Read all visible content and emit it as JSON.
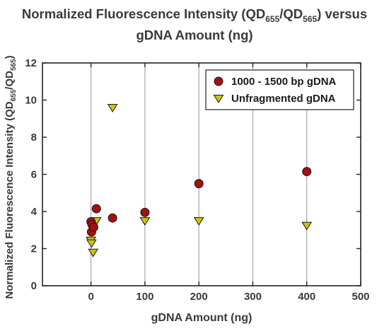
{
  "chart_data": {
    "type": "scatter",
    "title_parts": [
      {
        "t": "Normalized Fluorescence Intensity (QD",
        "sub": false
      },
      {
        "t": "655",
        "sub": true
      },
      {
        "t": "/QD",
        "sub": false
      },
      {
        "t": "565",
        "sub": true
      },
      {
        "t": ") versus",
        "sub": false
      },
      {
        "t": "gDNA Amount (ng)",
        "sub": false,
        "br": true
      }
    ],
    "xlabel": "gDNA Amount (ng)",
    "ylabel_parts": [
      {
        "t": "Normalized Fluorescence Intensity (QD",
        "sub": false
      },
      {
        "t": "655",
        "sub": true
      },
      {
        "t": "/QD",
        "sub": false
      },
      {
        "t": "565",
        "sub": true
      },
      {
        "t": ")",
        "sub": false
      }
    ],
    "xlim": [
      -90,
      500
    ],
    "ylim": [
      0,
      12
    ],
    "xticks": [
      0,
      100,
      200,
      300,
      400,
      500
    ],
    "yticks": [
      0,
      2,
      4,
      6,
      8,
      10,
      12
    ],
    "grid": "vertical",
    "legend_position": "top-right",
    "series": [
      {
        "name": "1000 - 1500 bp gDNA",
        "marker": "circle",
        "color": "#a50f0f",
        "points": [
          {
            "x": 0,
            "y": 3.45
          },
          {
            "x": 2,
            "y": 3.3
          },
          {
            "x": 1,
            "y": 2.9
          },
          {
            "x": 5,
            "y": 3.15
          },
          {
            "x": 10,
            "y": 4.15
          },
          {
            "x": 40,
            "y": 3.65
          },
          {
            "x": 100,
            "y": 3.95
          },
          {
            "x": 200,
            "y": 5.5
          },
          {
            "x": 400,
            "y": 6.15
          }
        ]
      },
      {
        "name": "Unfragmented gDNA",
        "marker": "triangle-down",
        "color": "#c9c40f",
        "points": [
          {
            "x": 0,
            "y": 2.45
          },
          {
            "x": 1,
            "y": 2.3
          },
          {
            "x": 4,
            "y": 1.8
          },
          {
            "x": 10,
            "y": 3.5
          },
          {
            "x": 40,
            "y": 9.6
          },
          {
            "x": 100,
            "y": 3.5
          },
          {
            "x": 200,
            "y": 3.5
          },
          {
            "x": 400,
            "y": 3.25
          }
        ]
      }
    ]
  }
}
